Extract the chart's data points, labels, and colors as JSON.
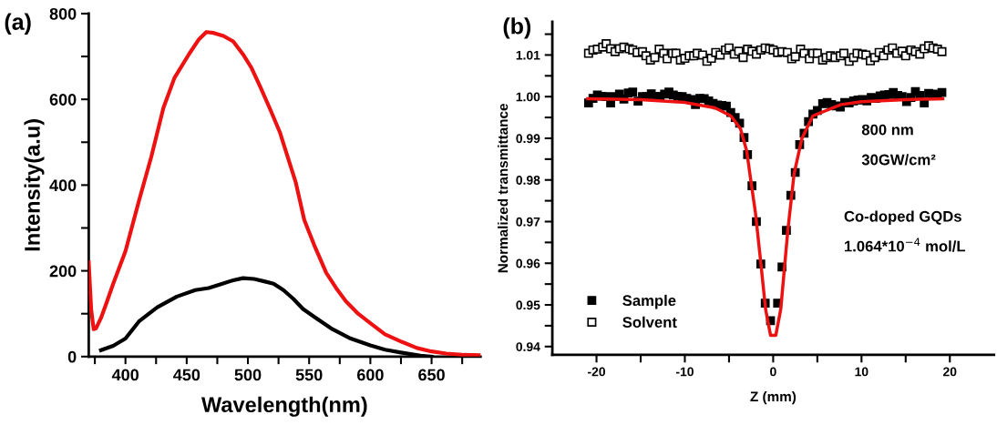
{
  "chart_data": [
    {
      "type": "line",
      "title": "(a)",
      "xlabel": "Wavelength(nm)",
      "ylabel": "Intensity(a.u)",
      "xlim": [
        370,
        690
      ],
      "ylim": [
        0,
        800
      ],
      "xticks": [
        {
          "value": 375,
          "label": null
        },
        400,
        {
          "value": 425,
          "label": null
        },
        450,
        {
          "value": 475,
          "label": null
        },
        500,
        {
          "value": 525,
          "label": null
        },
        550,
        {
          "value": 575,
          "label": null
        },
        600,
        {
          "value": 625,
          "label": null
        },
        650,
        {
          "value": 675,
          "label": null
        }
      ],
      "yticks": [
        0,
        {
          "value": 100,
          "label": null
        },
        200,
        {
          "value": 300,
          "label": null
        },
        400,
        {
          "value": 500,
          "label": null
        },
        600,
        {
          "value": 700,
          "label": null
        },
        800
      ],
      "grid": false,
      "legend": false,
      "marker": "none",
      "line_style": "solid",
      "series": [
        {
          "color": "#ee1111",
          "x": [
            370,
            372,
            374,
            376,
            380,
            385,
            390,
            400,
            411,
            421,
            431,
            440,
            452,
            460,
            466,
            472,
            480,
            488,
            496,
            503,
            510,
            518,
            526,
            532,
            539,
            546,
            554,
            564,
            572,
            580,
            590,
            600,
            612,
            626,
            638,
            650,
            662,
            675,
            690
          ],
          "values": [
            220,
            110,
            64,
            66,
            90,
            129,
            170,
            246,
            363,
            465,
            580,
            650,
            706,
            740,
            757,
            755,
            748,
            735,
            705,
            673,
            630,
            578,
            524,
            470,
            407,
            319,
            261,
            195,
            160,
            129,
            100,
            78,
            52,
            34,
            20,
            12,
            7,
            4,
            3
          ]
        },
        {
          "color": "#000000",
          "x": [
            380,
            390,
            400,
            411,
            426,
            442,
            457,
            468,
            478,
            488,
            496,
            505,
            514,
            521,
            529,
            537,
            545,
            554,
            569,
            584,
            600,
            612,
            626,
            641,
            650
          ],
          "values": [
            15,
            25,
            42,
            82,
            115,
            140,
            155,
            160,
            169,
            178,
            183,
            181,
            175,
            170,
            155,
            135,
            111,
            93,
            64,
            42,
            26,
            16,
            9,
            2,
            0
          ]
        }
      ]
    },
    {
      "type": "scatter",
      "title": "(b)",
      "xlabel": "Z (mm)",
      "ylabel": "Normalized transmittance",
      "xlim": [
        -25,
        25
      ],
      "ylim": [
        0.938,
        1.018
      ],
      "xticks": [
        -20,
        {
          "value": -15,
          "label": null
        },
        -10,
        {
          "value": -5,
          "label": null
        },
        0,
        {
          "value": 5,
          "label": null
        },
        10,
        {
          "value": 15,
          "label": null
        },
        20
      ],
      "yticks": [
        {
          "value": 0.94,
          "label": "0.94"
        },
        {
          "value": 0.945,
          "label": null
        },
        {
          "value": 0.95,
          "label": "0.95"
        },
        {
          "value": 0.955,
          "label": null
        },
        {
          "value": 0.96,
          "label": "0.96"
        },
        {
          "value": 0.965,
          "label": null
        },
        {
          "value": 0.97,
          "label": "0.97"
        },
        {
          "value": 0.975,
          "label": null
        },
        {
          "value": 0.98,
          "label": "0.98"
        },
        {
          "value": 0.985,
          "label": null
        },
        {
          "value": 0.99,
          "label": "0.99"
        },
        {
          "value": 0.995,
          "label": null
        },
        {
          "value": 1.0,
          "label": "1.00"
        },
        {
          "value": 1.005,
          "label": null
        },
        {
          "value": 1.01,
          "label": "1.01"
        },
        {
          "value": 1.015,
          "label": null
        }
      ],
      "grid": false,
      "legend": "bottom left",
      "marker": "square",
      "annotations": [
        "800 nm",
        "30GW/cm²",
        "Co-doped GQDs",
        "1.064*10$^{−4}$ mol/L"
      ],
      "series": [
        {
          "name": "Sample",
          "color": "#000000",
          "x": [
            -20.9,
            -20.4,
            -19.9,
            -19.4,
            -18.9,
            -18.4,
            -17.9,
            -17.4,
            -16.9,
            -16.4,
            -15.9,
            -15.3,
            -14.8,
            -14.3,
            -13.8,
            -13.3,
            -12.8,
            -12.3,
            -11.8,
            -11.3,
            -10.8,
            -10.3,
            -9.8,
            -9.3,
            -8.8,
            -8.3,
            -7.8,
            -7.3,
            -6.8,
            -6.3,
            -5.8,
            -5.3,
            -4.8,
            -4.3,
            -3.8,
            -3.3,
            -2.9,
            -2.4,
            -1.9,
            -1.4,
            -0.9,
            -0.3,
            0.5,
            1.0,
            1.5,
            2.0,
            2.5,
            3.0,
            3.5,
            4.0,
            4.5,
            5.0,
            5.6,
            6.1,
            6.6,
            7.1,
            7.6,
            8.1,
            8.6,
            9.1,
            9.6,
            10.1,
            10.6,
            11.1,
            11.6,
            12.1,
            12.6,
            13.1,
            13.6,
            14.1,
            14.6,
            15.1,
            15.6,
            16.1,
            16.6,
            17.1,
            17.6,
            18.1,
            18.6,
            19.1
          ],
          "values": [
            0.9985,
            0.9996,
            1.0004,
            1.0001,
            1.0,
            0.9985,
            1.0,
            1.0006,
            0.9994,
            1.0009,
            1.0011,
            0.9989,
            1.0,
            1.0,
            1.0007,
            1.0,
            1.0001,
            1.0006,
            1.0011,
            1.0004,
            1.0001,
            1.0,
            0.9996,
            0.9993,
            0.9981,
            0.9996,
            0.9995,
            0.999,
            0.9984,
            0.998,
            0.9979,
            0.9977,
            0.9962,
            0.995,
            0.9936,
            0.9902,
            0.9861,
            0.9786,
            0.97,
            0.9598,
            0.9504,
            0.9462,
            0.9504,
            0.9591,
            0.9679,
            0.9763,
            0.9818,
            0.9885,
            0.9912,
            0.994,
            0.9958,
            0.9967,
            0.9983,
            0.9986,
            0.9981,
            0.9978,
            0.9975,
            0.9986,
            0.9985,
            0.999,
            0.9992,
            0.9993,
            0.999,
            0.9998,
            0.9996,
            1.0002,
            1.0004,
            1.0005,
            1.001,
            1.0003,
            1.0,
            0.9988,
            0.9998,
            1.0012,
            1.0003,
            0.9985,
            1.0008,
            1.0006,
            1.0004,
            1.001
          ]
        },
        {
          "name": "Solvent",
          "color": "#000000",
          "x": [
            -20.9,
            -20.4,
            -19.9,
            -19.3,
            -18.9,
            -18.4,
            -17.9,
            -17.4,
            -16.9,
            -16.3,
            -15.9,
            -15.4,
            -14.8,
            -14.4,
            -13.9,
            -13.4,
            -12.9,
            -12.4,
            -12.0,
            -11.4,
            -11.0,
            -10.5,
            -10.0,
            -9.5,
            -9.0,
            -8.6,
            -8.0,
            -7.5,
            -7.0,
            -6.5,
            -6.0,
            -5.4,
            -5.0,
            -4.4,
            -3.9,
            -3.4,
            -2.9,
            -2.4,
            -1.9,
            -1.4,
            -0.9,
            -0.4,
            0.0,
            0.5,
            1.0,
            1.6,
            2.1,
            2.5,
            3.1,
            3.5,
            4.1,
            4.5,
            5.0,
            5.6,
            6.0,
            6.5,
            7.0,
            7.6,
            8.0,
            8.6,
            9.1,
            9.5,
            10.1,
            10.5,
            11.0,
            11.5,
            12.0,
            12.5,
            13.0,
            13.5,
            14.0,
            14.6,
            15.0,
            15.6,
            16.1,
            16.6,
            17.1,
            17.6,
            18.1,
            18.6,
            19.1
          ],
          "values": [
            1.0104,
            1.0112,
            1.0114,
            1.0119,
            1.0127,
            1.0115,
            1.0108,
            1.0115,
            1.0119,
            1.0115,
            1.0112,
            1.0106,
            1.0108,
            1.0098,
            1.0088,
            1.0094,
            1.0114,
            1.0104,
            1.0091,
            1.0104,
            1.0104,
            1.0088,
            1.0092,
            1.0098,
            1.0098,
            1.0104,
            1.01,
            1.0085,
            1.0092,
            1.0106,
            1.01,
            1.0112,
            1.0117,
            1.0102,
            1.0109,
            1.0094,
            1.0114,
            1.0109,
            1.0102,
            1.0112,
            1.0117,
            1.0115,
            1.0112,
            1.0106,
            1.0108,
            1.0106,
            1.0091,
            1.0096,
            1.0114,
            1.0104,
            1.0091,
            1.0104,
            1.0104,
            1.0088,
            1.0094,
            1.0098,
            1.0094,
            1.0098,
            1.0104,
            1.0085,
            1.0094,
            1.0104,
            1.0102,
            1.01,
            1.0086,
            1.0094,
            1.0106,
            1.0098,
            1.0112,
            1.0117,
            1.0104,
            1.0109,
            1.0098,
            1.0112,
            1.0108,
            1.0102,
            1.0115,
            1.0122,
            1.0117,
            1.0114,
            1.0108
          ]
        },
        {
          "type": "line",
          "marker": "none",
          "color": "#ee1111",
          "x": [
            -21,
            -15,
            -10,
            -6.6,
            -4.8,
            -3.7,
            -3.0,
            -2.44,
            -2.0,
            -1.47,
            -0.86,
            -0.3,
            0.3,
            0.86,
            1.65,
            2.37,
            3.26,
            4.5,
            7.7,
            10,
            15,
            19.2
          ],
          "values": [
            0.9995,
            0.9993,
            0.9986,
            0.9973,
            0.9954,
            0.9923,
            0.987,
            0.9785,
            0.972,
            0.9615,
            0.949,
            0.9427,
            0.9427,
            0.949,
            0.9677,
            0.9815,
            0.99,
            0.9954,
            0.9981,
            0.9988,
            0.9993,
            0.9995
          ]
        }
      ]
    }
  ]
}
